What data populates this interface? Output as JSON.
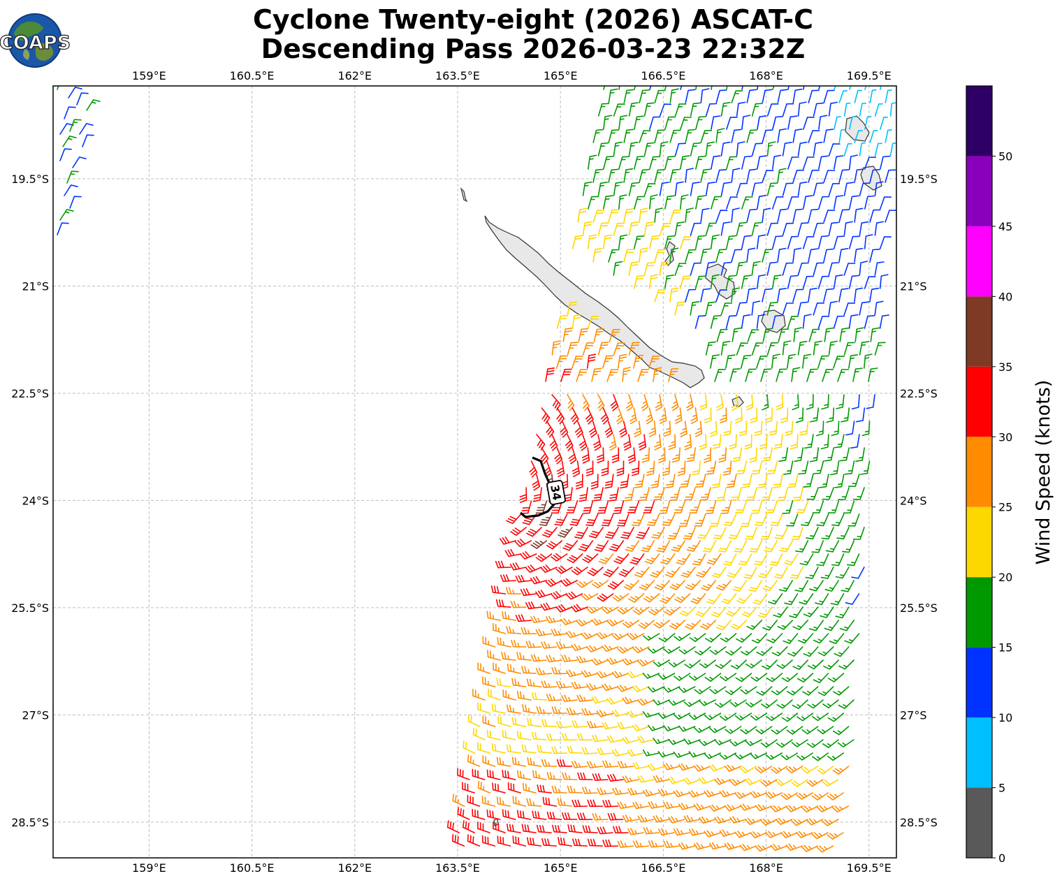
{
  "title": {
    "line1": "Cyclone Twenty-eight (2026) ASCAT-C",
    "line2": "Descending Pass 2026-03-23 22:32Z"
  },
  "logo": {
    "text": "COAPS"
  },
  "map": {
    "lon_range": [
      157.6,
      169.9
    ],
    "lat_range": [
      -29.0,
      -18.2
    ],
    "lon_ticks": [
      "159°E",
      "160.5°E",
      "162°E",
      "163.5°E",
      "165°E",
      "166.5°E",
      "168°E",
      "169.5°E"
    ],
    "lon_tick_values": [
      159,
      160.5,
      162,
      163.5,
      165,
      166.5,
      168,
      169.5
    ],
    "lat_ticks": [
      "19.5°S",
      "21°S",
      "22.5°S",
      "24°S",
      "25.5°S",
      "27°S",
      "28.5°S"
    ],
    "lat_tick_values": [
      -19.5,
      -21,
      -22.5,
      -24,
      -25.5,
      -27,
      -28.5
    ],
    "grid": true,
    "contour_label": "34"
  },
  "colorbar": {
    "label": "Wind Speed (knots)",
    "ticks": [
      "0",
      "5",
      "10",
      "15",
      "20",
      "25",
      "30",
      "35",
      "40",
      "45",
      "50"
    ],
    "bands": [
      {
        "min": 0,
        "max": 5,
        "color": "#595959"
      },
      {
        "min": 5,
        "max": 10,
        "color": "#00bfff"
      },
      {
        "min": 10,
        "max": 15,
        "color": "#0033ff"
      },
      {
        "min": 15,
        "max": 20,
        "color": "#009900"
      },
      {
        "min": 20,
        "max": 25,
        "color": "#ffd700"
      },
      {
        "min": 25,
        "max": 30,
        "color": "#ff8c00"
      },
      {
        "min": 30,
        "max": 35,
        "color": "#ff0000"
      },
      {
        "min": 35,
        "max": 40,
        "color": "#7f3a26"
      },
      {
        "min": 40,
        "max": 45,
        "color": "#ff00ff"
      },
      {
        "min": 45,
        "max": 50,
        "color": "#8800bb"
      },
      {
        "min": 50,
        "max": 55,
        "color": "#2e0066"
      }
    ]
  }
}
